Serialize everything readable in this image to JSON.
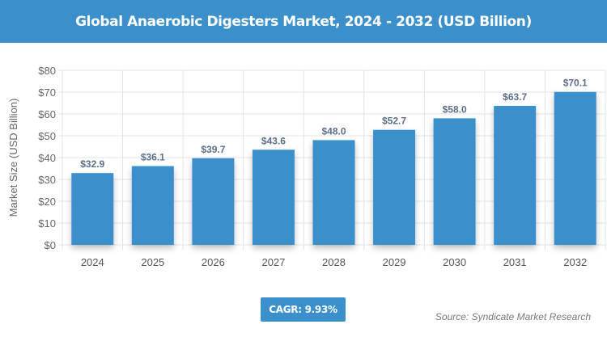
{
  "title": "Global Anaerobic Digesters Market, 2024 - 2032 (USD Billion)",
  "cagr_label": "CAGR: 9.93%",
  "source": "Source: Syndicate Market Research",
  "colors": {
    "bar": "#3b90cc",
    "header": "#3b90cc",
    "label": "#5a6f8c"
  },
  "chart_data": {
    "type": "bar",
    "title": "Global Anaerobic Digesters Market, 2024 - 2032 (USD Billion)",
    "xlabel": "",
    "ylabel": "Market Size (USD Billion)",
    "categories": [
      "2024",
      "2025",
      "2026",
      "2027",
      "2028",
      "2029",
      "2030",
      "2031",
      "2032"
    ],
    "values": [
      32.9,
      36.1,
      39.7,
      43.6,
      48.0,
      52.7,
      58.0,
      63.7,
      70.1
    ],
    "data_labels": [
      "$32.9",
      "$36.1",
      "$39.7",
      "$43.6",
      "$48.0",
      "$52.7",
      "$58.0",
      "$63.7",
      "$70.1"
    ],
    "ylim": [
      0,
      80
    ],
    "yticks": [
      "$0",
      "$10",
      "$20",
      "$30",
      "$40",
      "$50",
      "$60",
      "$70",
      "$80"
    ],
    "grid": true
  }
}
